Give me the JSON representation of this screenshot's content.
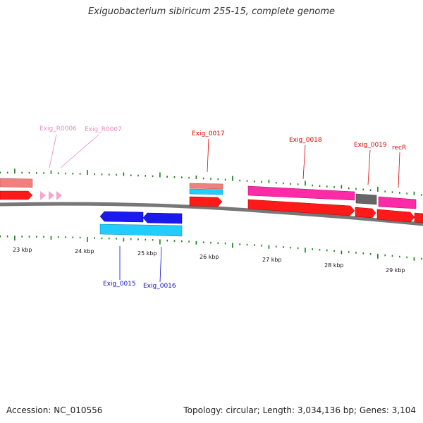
{
  "title": "Exiguobacterium sibiricum 255-15, complete genome",
  "footer": {
    "accession": "Accession: NC_010556",
    "summary": "Topology: circular; Length: 3,034,136 bp; Genes: 3,104"
  },
  "colors": {
    "backbone": "#777777",
    "tick": "#1a7a1a",
    "cds_red": "#ff1a1a",
    "cds_salmon": "#f08080",
    "cds_pink": "#ff2aa8",
    "cds_gray": "#666666",
    "cds_cyan": "#22ccff",
    "cds_blue": "#1a1aee",
    "rna_pink": "#f5a6cf",
    "label_red": "#dd0000",
    "label_pink": "#ee88bb",
    "label_blue": "#1111cc"
  },
  "axis": {
    "unit": "kbp",
    "tick_labels": [
      "23 kbp",
      "24 kbp",
      "25 kbp",
      "26 kbp",
      "27 kbp",
      "28 kbp",
      "29 kbp"
    ]
  },
  "gene_labels": [
    {
      "text": "Exig_R0006",
      "strand": "top",
      "color": "label_pink"
    },
    {
      "text": "Exig_R0007",
      "strand": "top",
      "color": "label_pink"
    },
    {
      "text": "Exig_0017",
      "strand": "top",
      "color": "label_red"
    },
    {
      "text": "Exig_0018",
      "strand": "top",
      "color": "label_red"
    },
    {
      "text": "Exig_0019",
      "strand": "top",
      "color": "label_red"
    },
    {
      "text": "recR",
      "strand": "top",
      "color": "label_red"
    },
    {
      "text": "Exig_0015",
      "strand": "bottom",
      "color": "label_blue"
    },
    {
      "text": "Exig_0016",
      "strand": "bottom",
      "color": "label_blue"
    }
  ]
}
